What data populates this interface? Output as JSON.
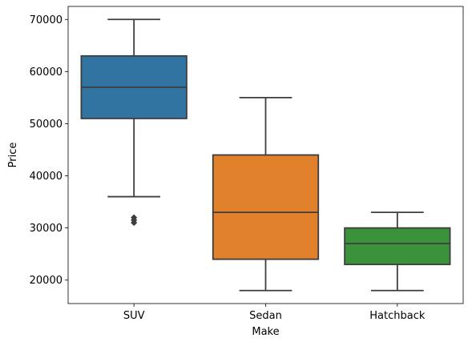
{
  "chart_data": {
    "type": "box",
    "title": "",
    "xlabel": "Make",
    "ylabel": "Price",
    "categories": [
      "SUV",
      "Sedan",
      "Hatchback"
    ],
    "ylim": [
      15500,
      72500
    ],
    "yticks": [
      20000,
      30000,
      40000,
      50000,
      60000,
      70000
    ],
    "ytick_labels": [
      "20000",
      "30000",
      "40000",
      "50000",
      "60000",
      "70000"
    ],
    "grid": false,
    "legend": "none",
    "boxes": [
      {
        "category": "SUV",
        "color": "#3274a1",
        "whisker_low": 36000,
        "q1": 51000,
        "median": 57000,
        "q3": 63000,
        "whisker_high": 70000,
        "outliers": [
          31000,
          31500,
          32000
        ]
      },
      {
        "category": "Sedan",
        "color": "#e1812c",
        "whisker_low": 18000,
        "q1": 24000,
        "median": 33000,
        "q3": 44000,
        "whisker_high": 55000,
        "outliers": []
      },
      {
        "category": "Hatchback",
        "color": "#3a923a",
        "whisker_low": 18000,
        "q1": 23000,
        "median": 27000,
        "q3": 30000,
        "whisker_high": 33000,
        "outliers": []
      }
    ]
  }
}
